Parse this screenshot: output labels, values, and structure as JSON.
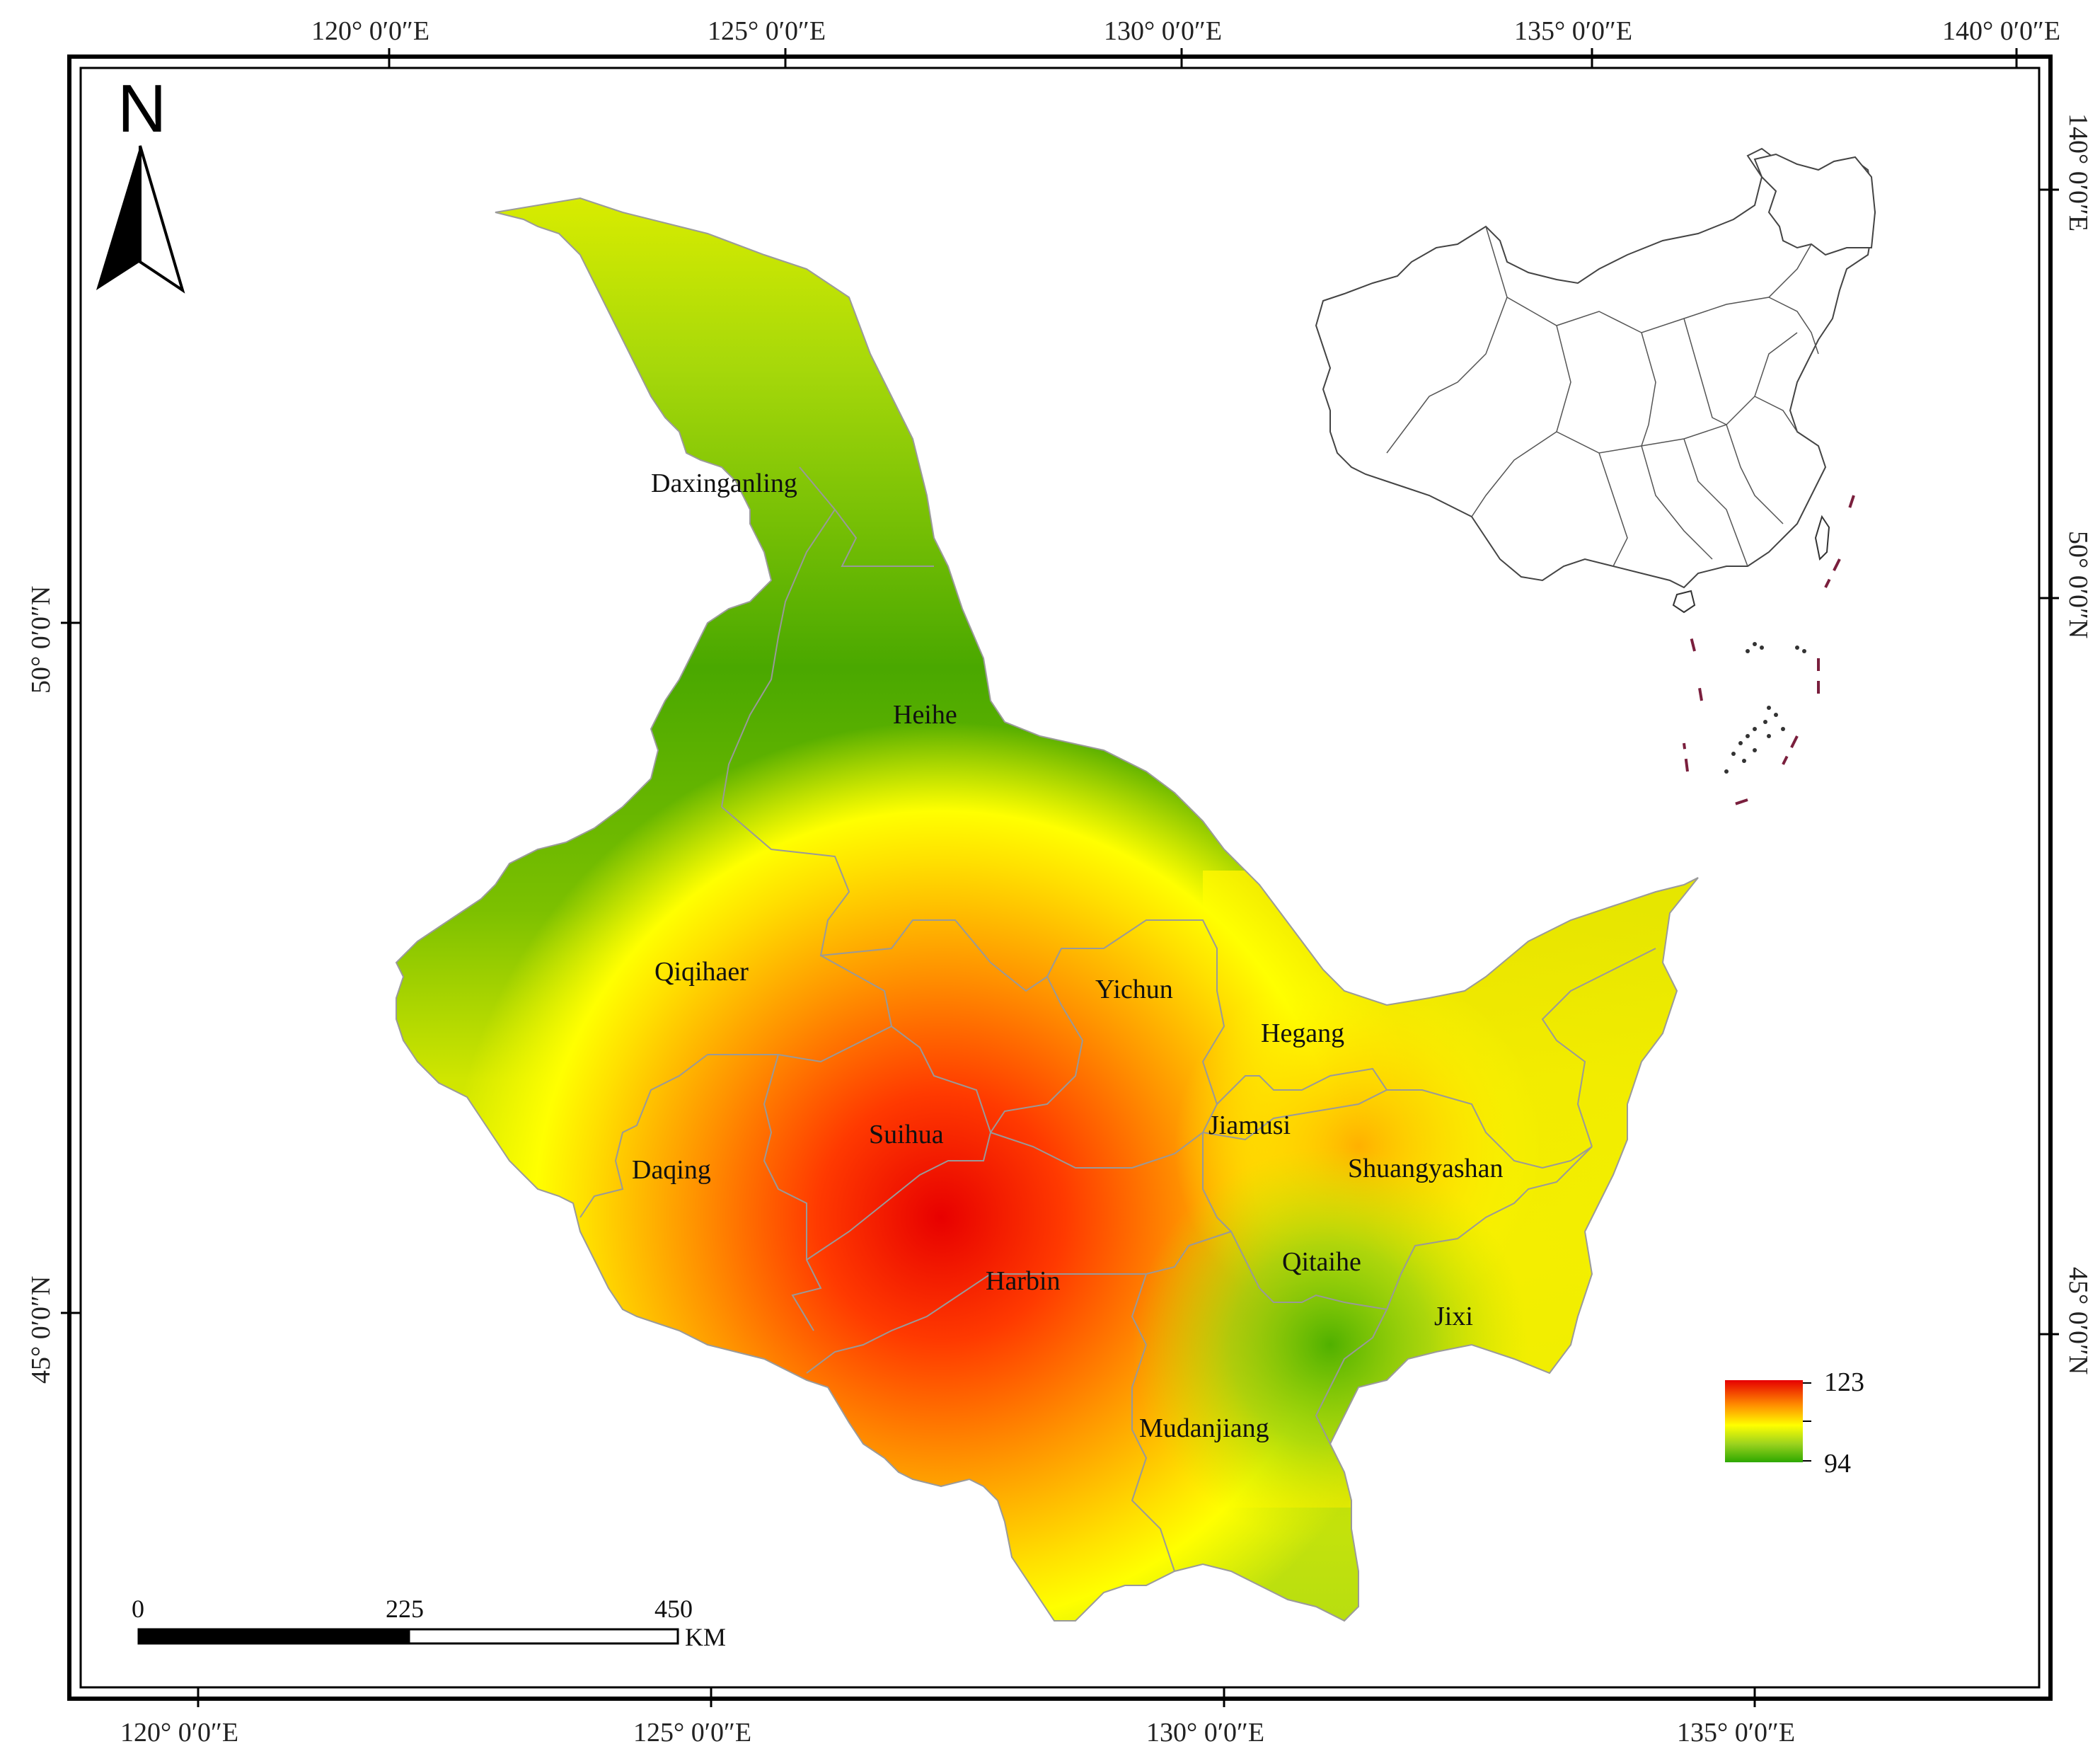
{
  "north_arrow": {
    "label": "N"
  },
  "graticule": {
    "top_labels": [
      "120° 0′0″E",
      "125° 0′0″E",
      "130° 0′0″E",
      "135° 0′0″E",
      "140° 0′0″E"
    ],
    "bottom_labels": [
      "120° 0′0″E",
      "125° 0′0″E",
      "130° 0′0″E",
      "135° 0′0″E"
    ],
    "left_labels": [
      "50° 0′0″N",
      "45° 0′0″N"
    ],
    "right_labels": [
      "140° 0′0″E",
      "50° 0′0″N",
      "45° 0′0″N"
    ]
  },
  "cities": [
    "Daxinganling",
    "Heihe",
    "Qiqihaer",
    "Yichun",
    "Hegang",
    "Jiamusi",
    "Suihua",
    "Daqing",
    "Shuangyashan",
    "Harbin",
    "Qitaihe",
    "Jixi",
    "Mudanjiang"
  ],
  "legend": {
    "max_label": "123",
    "min_label": "94",
    "colors": [
      "#e60000",
      "#ff8c00",
      "#ffff00",
      "#9ad21e",
      "#2ea800"
    ]
  },
  "scale_bar": {
    "labels": [
      "0",
      "225",
      "450"
    ],
    "unit": "KM"
  },
  "colors": {
    "inset_highlight": "#00b4f0",
    "frame": "#000000",
    "district_borders": "#999999"
  }
}
